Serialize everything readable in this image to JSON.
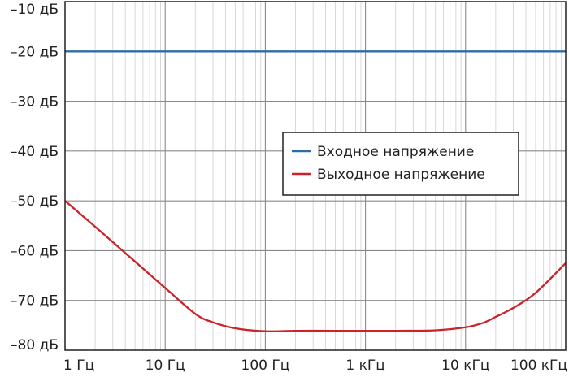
{
  "chart_data": {
    "type": "line",
    "x_scale": "log",
    "xlim": [
      1,
      100000
    ],
    "ylim": [
      -80,
      -10
    ],
    "grid": true,
    "legend_position": "center-right",
    "x_ticks": [
      {
        "value": 1,
        "label": "1 Гц"
      },
      {
        "value": 10,
        "label": "10 Гц"
      },
      {
        "value": 100,
        "label": "100 Гц"
      },
      {
        "value": 1000,
        "label": "1 кГц"
      },
      {
        "value": 10000,
        "label": "10 кГц"
      },
      {
        "value": 100000,
        "label": "100 кГц"
      }
    ],
    "y_ticks": [
      {
        "value": -10,
        "label": "–10 дБ"
      },
      {
        "value": -20,
        "label": "–20 дБ"
      },
      {
        "value": -30,
        "label": "–30 дБ"
      },
      {
        "value": -40,
        "label": "–40 дБ"
      },
      {
        "value": -50,
        "label": "–50 дБ"
      },
      {
        "value": -60,
        "label": "–60 дБ"
      },
      {
        "value": -70,
        "label": "–70 дБ"
      },
      {
        "value": -80,
        "label": "–80 дБ"
      }
    ],
    "series": [
      {
        "name": "Входное напряжение",
        "color": "#2e6ca8",
        "x": [
          1,
          100000
        ],
        "y": [
          -20,
          -20
        ]
      },
      {
        "name": "Выходное напряжение",
        "color": "#cc2229",
        "x": [
          1,
          2,
          5,
          10,
          20,
          30,
          50,
          100,
          200,
          500,
          1000,
          2000,
          5000,
          10000,
          15000,
          20000,
          30000,
          50000,
          100000
        ],
        "y": [
          -50,
          -55.2,
          -62.2,
          -67.5,
          -72.7,
          -74.4,
          -75.6,
          -76.2,
          -76.1,
          -76.1,
          -76.1,
          -76.1,
          -76.0,
          -75.4,
          -74.5,
          -73.3,
          -71.5,
          -68.5,
          -62.5
        ]
      }
    ]
  }
}
